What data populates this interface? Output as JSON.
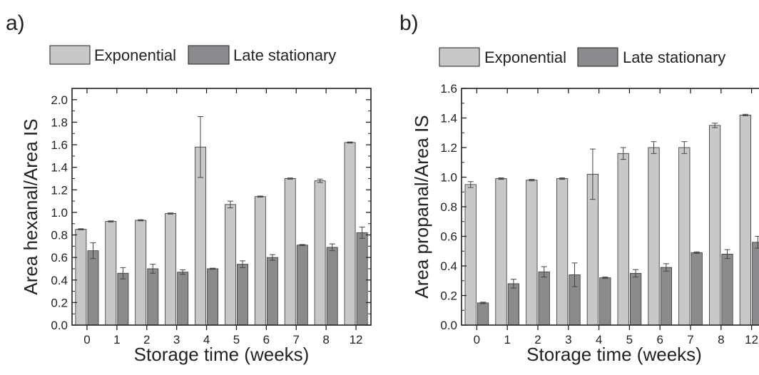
{
  "colors": {
    "exponential": "#c8c8c8",
    "late_stationary": "#8b8b8d",
    "axis": "#222222"
  },
  "chart_data": [
    {
      "panel_label": "a)",
      "type": "bar",
      "categories": [
        "0",
        "1",
        "2",
        "3",
        "4",
        "5",
        "6",
        "7",
        "8",
        "12"
      ],
      "xlabel": "Storage time (weeks)",
      "ylabel": "Area hexanal/Area IS",
      "ylim": [
        0,
        2.1
      ],
      "yticks": [
        "0.0",
        "0.2",
        "0.4",
        "0.6",
        "0.8",
        "1.0",
        "1.2",
        "1.4",
        "1.6",
        "1.8",
        "2.0"
      ],
      "legend_position": "top",
      "series": [
        {
          "name": "Exponential",
          "values": [
            0.85,
            0.92,
            0.93,
            0.99,
            1.58,
            1.07,
            1.14,
            1.3,
            1.28,
            1.62
          ],
          "errors": [
            0.005,
            0.005,
            0.005,
            0.005,
            0.27,
            0.03,
            0.005,
            0.005,
            0.015,
            0.005
          ]
        },
        {
          "name": "Late stationary",
          "values": [
            0.66,
            0.46,
            0.5,
            0.47,
            0.5,
            0.54,
            0.6,
            0.71,
            0.69,
            0.82
          ],
          "errors": [
            0.07,
            0.05,
            0.04,
            0.02,
            0.005,
            0.03,
            0.025,
            0.005,
            0.03,
            0.05
          ]
        }
      ]
    },
    {
      "panel_label": "b)",
      "type": "bar",
      "categories": [
        "0",
        "1",
        "2",
        "3",
        "4",
        "5",
        "6",
        "7",
        "8",
        "12"
      ],
      "xlabel": "Storage time (weeks)",
      "ylabel": "Area propanal/Area IS",
      "ylim": [
        0,
        1.6
      ],
      "yticks": [
        "0.0",
        "0.2",
        "0.4",
        "0.6",
        "0.8",
        "1.0",
        "1.2",
        "1.4",
        "1.6"
      ],
      "legend_position": "top",
      "series": [
        {
          "name": "Exponential",
          "values": [
            0.95,
            0.99,
            0.98,
            0.99,
            1.02,
            1.16,
            1.2,
            1.2,
            1.35,
            1.42
          ],
          "errors": [
            0.02,
            0.005,
            0.005,
            0.005,
            0.17,
            0.04,
            0.04,
            0.04,
            0.015,
            0.005
          ]
        },
        {
          "name": "Late stationary",
          "values": [
            0.15,
            0.28,
            0.36,
            0.34,
            0.32,
            0.35,
            0.39,
            0.49,
            0.48,
            0.56
          ],
          "errors": [
            0.005,
            0.03,
            0.035,
            0.08,
            0.005,
            0.025,
            0.025,
            0.005,
            0.03,
            0.04
          ]
        }
      ]
    }
  ]
}
